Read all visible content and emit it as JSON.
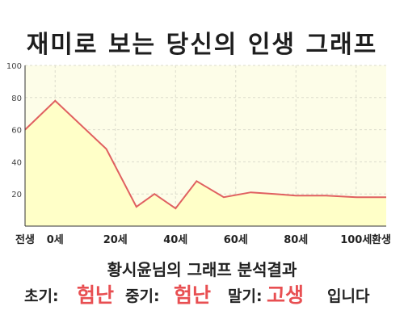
{
  "title": "재미로 보는 당신의 인생 그래프",
  "chart_data": {
    "type": "area",
    "title": "재미로 보는 당신의 인생 그래프",
    "ylim": [
      0,
      100
    ],
    "xlim": [
      -10,
      110
    ],
    "yticks": [
      20,
      40,
      60,
      80,
      100
    ],
    "xticks": [
      {
        "x": -10,
        "label": "전생"
      },
      {
        "x": 0,
        "label": "0세"
      },
      {
        "x": 20,
        "label": "20세"
      },
      {
        "x": 40,
        "label": "40세"
      },
      {
        "x": 60,
        "label": "60세"
      },
      {
        "x": 80,
        "label": "80세"
      },
      {
        "x": 100,
        "label": "100세"
      },
      {
        "x": 110,
        "label": "환생"
      }
    ],
    "series": [
      {
        "x": [
          -10,
          0,
          17,
          27,
          33,
          40,
          47,
          56,
          65,
          73,
          80,
          90,
          100,
          110
        ],
        "values": [
          60,
          78,
          48,
          12,
          20,
          11,
          28,
          18,
          21,
          20,
          19,
          19,
          18,
          18
        ]
      }
    ],
    "grid": true,
    "line_color": "#e06060",
    "fill_color": "#ffffc8",
    "plot_bg": "#fdfde8"
  },
  "analysis_text": "황시윤님의 그래프 분석결과",
  "result": {
    "early_label": "초기:",
    "early_value": "험난",
    "mid_label": "중기:",
    "mid_value": "험난",
    "late_label": "말기:",
    "late_value": "고생",
    "suffix": "입니다"
  }
}
